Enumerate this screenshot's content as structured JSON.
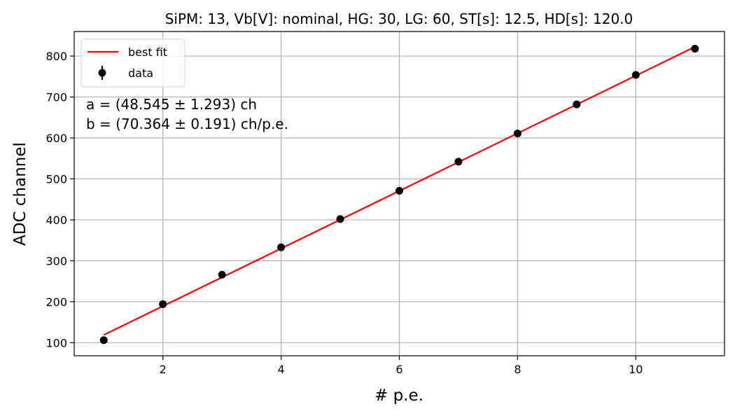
{
  "chart_data": {
    "type": "scatter",
    "title": "SiPM: 13, Vb[V]: nominal, HG: 30, LG: 60, ST[s]: 12.5, HD[s]: 120.0",
    "xlabel": "# p.e.",
    "ylabel": "ADC channel",
    "xlim": [
      0.5,
      11.5
    ],
    "ylim": [
      68,
      860
    ],
    "xticks": [
      2,
      4,
      6,
      8,
      10
    ],
    "yticks": [
      100,
      200,
      300,
      400,
      500,
      600,
      700,
      800
    ],
    "grid": true,
    "legend_position": "top-left",
    "series": [
      {
        "name": "best fit",
        "kind": "line",
        "color": "#ff0000",
        "x": [
          1,
          11
        ],
        "y": [
          118.9,
          822.5
        ]
      },
      {
        "name": "data",
        "kind": "errorbar-points",
        "color": "#000000",
        "x": [
          1,
          2,
          3,
          4,
          5,
          6,
          7,
          8,
          9,
          10,
          11
        ],
        "y": [
          106,
          194,
          266,
          333,
          402,
          471,
          542,
          611,
          682,
          754,
          818
        ]
      }
    ],
    "annotations": [
      "a = (48.545 ± 1.293) ch",
      "b = (70.364 ± 0.191) ch/p.e."
    ]
  }
}
